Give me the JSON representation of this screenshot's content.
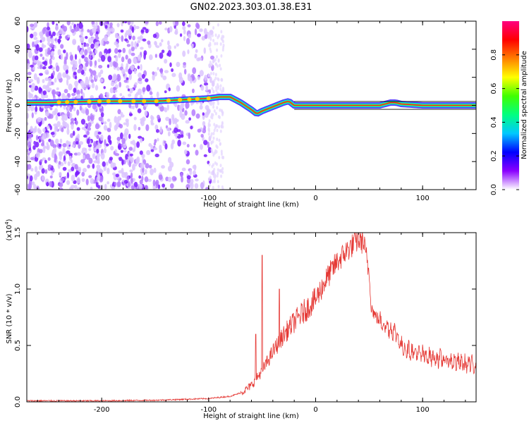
{
  "title": "GN02.2023.303.01.38.E31",
  "chart_data": [
    {
      "type": "heatmap",
      "xlabel": "Height of straight line (km)",
      "ylabel": "Frequency (Hz)",
      "xlim": [
        -270,
        150
      ],
      "ylim": [
        -60,
        60
      ],
      "x_ticks": [
        -200,
        -100,
        0,
        100
      ],
      "y_ticks": [
        -60,
        -40,
        -20,
        0,
        20,
        40,
        60
      ],
      "colorbar": {
        "label": "Normalized spectral amplitude",
        "range": [
          0,
          1
        ],
        "ticks": [
          "0.0",
          "0.2",
          "0.4",
          "0.6",
          "0.8"
        ],
        "colors": [
          "#ffffff",
          "#8a00ff",
          "#0000ff",
          "#00c8ff",
          "#00ff80",
          "#40ff00",
          "#ffff00",
          "#ff8000",
          "#ff0000",
          "#ff0080"
        ]
      },
      "ridge": {
        "x": [
          -250,
          -200,
          -150,
          -100,
          -90,
          -80,
          -70,
          -60,
          -55,
          -50,
          -40,
          -30,
          -25,
          -20,
          0,
          50,
          60,
          70,
          75,
          80,
          100,
          120,
          150
        ],
        "y": [
          2,
          3,
          3,
          5,
          6,
          6,
          2,
          -3,
          -6,
          -4,
          -1,
          2,
          3,
          0,
          0,
          0,
          0,
          2,
          2,
          1,
          0,
          0,
          0
        ]
      }
    },
    {
      "type": "line",
      "xlabel": "Height of straight line (km)",
      "ylabel": "SNR (10 * v/v)",
      "y_scale_label": "(x10",
      "y_scale_exp": "4",
      "y_scale_close": ")",
      "xlim": [
        -270,
        150
      ],
      "ylim": [
        0,
        1.5
      ],
      "x_ticks": [
        -200,
        -100,
        0,
        100
      ],
      "y_ticks": [
        "0.0",
        "0.5",
        "1.0",
        "1.5"
      ],
      "color": "#e53935",
      "envelope": {
        "x": [
          -270,
          -200,
          -150,
          -100,
          -80,
          -70,
          -60,
          -50,
          -40,
          -30,
          -20,
          -10,
          0,
          10,
          20,
          30,
          40,
          45,
          50,
          52,
          55,
          60,
          70,
          75,
          80,
          90,
          100,
          110,
          120,
          130,
          140,
          150
        ],
        "y": [
          0.01,
          0.01,
          0.015,
          0.03,
          0.05,
          0.08,
          0.15,
          0.28,
          0.45,
          0.6,
          0.72,
          0.82,
          0.92,
          1.1,
          1.25,
          1.36,
          1.45,
          1.42,
          1.15,
          0.85,
          0.78,
          0.72,
          0.65,
          0.62,
          0.5,
          0.45,
          0.42,
          0.4,
          0.38,
          0.36,
          0.34,
          0.33
        ]
      },
      "spikes": [
        {
          "x": -56,
          "y": 0.6
        },
        {
          "x": -50,
          "y": 1.3
        },
        {
          "x": -34,
          "y": 1.0
        }
      ]
    }
  ]
}
